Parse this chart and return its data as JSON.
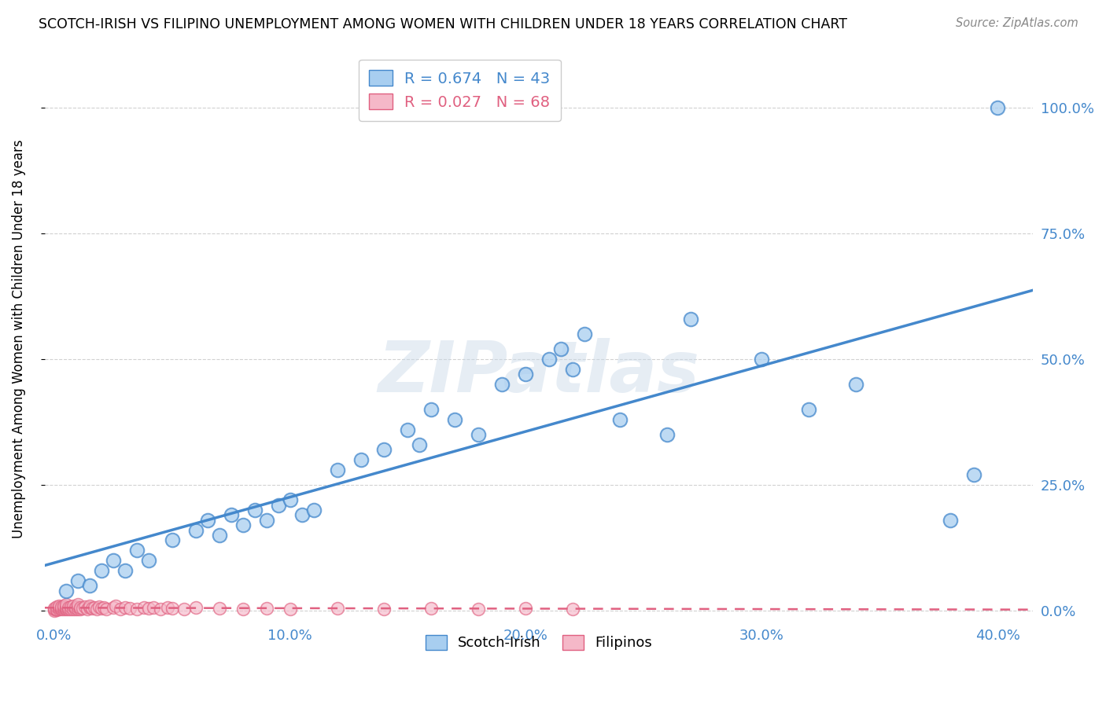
{
  "title": "SCOTCH-IRISH VS FILIPINO UNEMPLOYMENT AMONG WOMEN WITH CHILDREN UNDER 18 YEARS CORRELATION CHART",
  "source": "Source: ZipAtlas.com",
  "ylabel": "Unemployment Among Women with Children Under 18 years",
  "xlabel_ticks": [
    "0.0%",
    "10.0%",
    "20.0%",
    "30.0%",
    "40.0%"
  ],
  "xlabel_vals": [
    0.0,
    0.1,
    0.2,
    0.3,
    0.4
  ],
  "ylabel_ticks_right": [
    "0.0%",
    "25.0%",
    "50.0%",
    "75.0%",
    "100.0%"
  ],
  "ylabel_vals": [
    0.0,
    0.25,
    0.5,
    0.75,
    1.0
  ],
  "xlim": [
    -0.004,
    0.415
  ],
  "ylim": [
    -0.02,
    1.1
  ],
  "scotch_irish_R": 0.674,
  "scotch_irish_N": 43,
  "filipino_R": 0.027,
  "filipino_N": 68,
  "scotch_irish_color": "#a8cef0",
  "filipino_color": "#f5b8c8",
  "scotch_irish_line_color": "#4488cc",
  "filipino_line_color": "#e06080",
  "watermark": "ZIPatlas",
  "scotch_irish_x": [
    0.005,
    0.01,
    0.015,
    0.02,
    0.025,
    0.03,
    0.035,
    0.04,
    0.05,
    0.06,
    0.065,
    0.07,
    0.075,
    0.08,
    0.085,
    0.09,
    0.095,
    0.1,
    0.105,
    0.11,
    0.12,
    0.13,
    0.14,
    0.15,
    0.155,
    0.16,
    0.17,
    0.18,
    0.19,
    0.2,
    0.21,
    0.215,
    0.22,
    0.225,
    0.24,
    0.26,
    0.27,
    0.3,
    0.32,
    0.34,
    0.38,
    0.39,
    0.4
  ],
  "scotch_irish_y": [
    0.04,
    0.06,
    0.05,
    0.08,
    0.1,
    0.08,
    0.12,
    0.1,
    0.14,
    0.16,
    0.18,
    0.15,
    0.19,
    0.17,
    0.2,
    0.18,
    0.21,
    0.22,
    0.19,
    0.2,
    0.28,
    0.3,
    0.32,
    0.36,
    0.33,
    0.4,
    0.38,
    0.35,
    0.45,
    0.47,
    0.5,
    0.52,
    0.48,
    0.55,
    0.38,
    0.35,
    0.58,
    0.5,
    0.4,
    0.45,
    0.18,
    0.27,
    1.0
  ],
  "filipino_x": [
    0.0,
    0.0,
    0.0,
    0.001,
    0.001,
    0.001,
    0.002,
    0.002,
    0.002,
    0.003,
    0.003,
    0.003,
    0.004,
    0.004,
    0.004,
    0.005,
    0.005,
    0.005,
    0.005,
    0.006,
    0.006,
    0.007,
    0.007,
    0.008,
    0.008,
    0.009,
    0.009,
    0.01,
    0.01,
    0.01,
    0.011,
    0.011,
    0.012,
    0.013,
    0.014,
    0.015,
    0.015,
    0.016,
    0.017,
    0.018,
    0.019,
    0.02,
    0.021,
    0.022,
    0.025,
    0.026,
    0.028,
    0.03,
    0.032,
    0.035,
    0.038,
    0.04,
    0.042,
    0.045,
    0.048,
    0.05,
    0.055,
    0.06,
    0.07,
    0.08,
    0.09,
    0.1,
    0.12,
    0.14,
    0.16,
    0.18,
    0.2,
    0.22
  ],
  "filipino_y": [
    0.0,
    0.003,
    0.005,
    0.002,
    0.004,
    0.008,
    0.003,
    0.006,
    0.01,
    0.003,
    0.005,
    0.008,
    0.004,
    0.007,
    0.01,
    0.003,
    0.005,
    0.008,
    0.012,
    0.004,
    0.007,
    0.003,
    0.008,
    0.004,
    0.009,
    0.003,
    0.007,
    0.004,
    0.008,
    0.012,
    0.003,
    0.007,
    0.005,
    0.008,
    0.004,
    0.006,
    0.01,
    0.005,
    0.007,
    0.004,
    0.008,
    0.005,
    0.007,
    0.004,
    0.006,
    0.01,
    0.004,
    0.007,
    0.005,
    0.004,
    0.006,
    0.005,
    0.007,
    0.004,
    0.006,
    0.005,
    0.004,
    0.006,
    0.005,
    0.004,
    0.005,
    0.004,
    0.005,
    0.004,
    0.005,
    0.004,
    0.005,
    0.004
  ]
}
